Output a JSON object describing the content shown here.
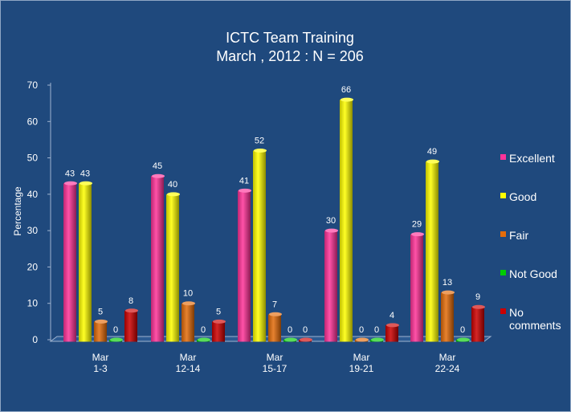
{
  "chart_data": {
    "type": "bar",
    "title": "ICTC Team Training",
    "subtitle": "March , 2012 : N = 206",
    "ylabel": "Percentage",
    "xlabel": "",
    "ylim": [
      0,
      70
    ],
    "yticks": [
      0,
      10,
      20,
      30,
      40,
      50,
      60,
      70
    ],
    "categories": [
      [
        "Mar",
        "1-3"
      ],
      [
        "Mar",
        "12-14"
      ],
      [
        "Mar",
        "15-17"
      ],
      [
        "Mar",
        "19-21"
      ],
      [
        "Mar",
        "22-24"
      ]
    ],
    "series": [
      {
        "name": "Excellent",
        "color": "#ff3399",
        "values": [
          43,
          45,
          41,
          30,
          29
        ]
      },
      {
        "name": "Good",
        "color": "#ffff00",
        "values": [
          43,
          40,
          52,
          66,
          49
        ]
      },
      {
        "name": "Fair",
        "color": "#e36c0a",
        "values": [
          5,
          10,
          7,
          0,
          13
        ]
      },
      {
        "name": "Not Good",
        "color": "#00cc00",
        "values": [
          0,
          0,
          0,
          0,
          0
        ]
      },
      {
        "name": "No comments",
        "color": "#cc0000",
        "values": [
          8,
          5,
          0,
          4,
          9
        ]
      }
    ],
    "data_labels": [
      [
        "43",
        "43",
        "5",
        "0",
        "8"
      ],
      [
        "45",
        "40",
        "10",
        "0",
        "5"
      ],
      [
        "41",
        "52",
        "7",
        "0",
        "0"
      ],
      [
        "30",
        "66",
        "0",
        "0",
        "4"
      ],
      [
        "29",
        "49",
        "13",
        "0",
        "9"
      ]
    ],
    "legend_labels": [
      [
        "Excellent"
      ],
      [
        "Good"
      ],
      [
        "Fair"
      ],
      [
        "Not Good"
      ],
      [
        "No",
        "comments"
      ]
    ],
    "legend_position": "right",
    "grid": false,
    "background": "#1f497d"
  }
}
